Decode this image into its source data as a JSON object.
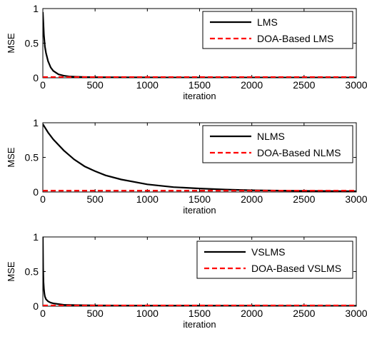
{
  "chart_data": [
    {
      "type": "line",
      "xlabel": "iteration",
      "ylabel": "MSE",
      "xlim": [
        0,
        3000
      ],
      "ylim": [
        0,
        1
      ],
      "xticks": [
        "0",
        "500",
        "1000",
        "1500",
        "2000",
        "2500",
        "3000"
      ],
      "yticks": [
        "0",
        "0.5",
        "1"
      ],
      "legend_position": "top-right",
      "series": [
        {
          "name": "LMS",
          "color": "#000000",
          "style": "solid",
          "x": [
            0,
            5,
            10,
            20,
            30,
            50,
            75,
            100,
            150,
            200,
            250,
            300,
            400,
            500,
            750,
            1000,
            1500,
            2000,
            2500,
            3000
          ],
          "y": [
            0.95,
            0.8,
            0.62,
            0.45,
            0.36,
            0.24,
            0.15,
            0.1,
            0.05,
            0.03,
            0.02,
            0.015,
            0.01,
            0.008,
            0.006,
            0.005,
            0.004,
            0.004,
            0.004,
            0.004
          ]
        },
        {
          "name": "DOA-Based LMS",
          "color": "#ff0000",
          "style": "dashed",
          "x": [
            0,
            3000
          ],
          "y": [
            0.01,
            0.01
          ]
        }
      ]
    },
    {
      "type": "line",
      "xlabel": "iteration",
      "ylabel": "MSE",
      "xlim": [
        0,
        3000
      ],
      "ylim": [
        0,
        1
      ],
      "xticks": [
        "0",
        "500",
        "1000",
        "1500",
        "2000",
        "2500",
        "3000"
      ],
      "yticks": [
        "0",
        "0.5",
        "1"
      ],
      "legend_position": "top-right",
      "series": [
        {
          "name": "NLMS",
          "color": "#000000",
          "style": "solid",
          "x": [
            0,
            50,
            100,
            200,
            300,
            400,
            500,
            600,
            750,
            1000,
            1250,
            1500,
            1750,
            2000,
            2500,
            3000
          ],
          "y": [
            0.98,
            0.86,
            0.76,
            0.6,
            0.47,
            0.37,
            0.3,
            0.24,
            0.18,
            0.11,
            0.07,
            0.05,
            0.035,
            0.025,
            0.015,
            0.01
          ]
        },
        {
          "name": "DOA-Based NLMS",
          "color": "#ff0000",
          "style": "dashed",
          "x": [
            0,
            3000
          ],
          "y": [
            0.02,
            0.02
          ]
        }
      ]
    },
    {
      "type": "line",
      "xlabel": "iteration",
      "ylabel": "MSE",
      "xlim": [
        0,
        3000
      ],
      "ylim": [
        0,
        1
      ],
      "xticks": [
        "0",
        "500",
        "1000",
        "1500",
        "2000",
        "2500",
        "3000"
      ],
      "yticks": [
        "0",
        "0.5",
        "1"
      ],
      "legend_position": "top-right",
      "series": [
        {
          "name": "VSLMS",
          "color": "#000000",
          "style": "solid",
          "x": [
            0,
            3,
            6,
            10,
            15,
            20,
            30,
            50,
            75,
            100,
            150,
            200,
            300,
            500,
            1000,
            2000,
            3000
          ],
          "y": [
            1.0,
            0.55,
            0.35,
            0.25,
            0.18,
            0.14,
            0.1,
            0.07,
            0.05,
            0.04,
            0.03,
            0.02,
            0.015,
            0.01,
            0.008,
            0.006,
            0.005
          ]
        },
        {
          "name": "DOA-Based VSLMS",
          "color": "#ff0000",
          "style": "dashed",
          "x": [
            0,
            3000
          ],
          "y": [
            0.01,
            0.01
          ]
        }
      ]
    }
  ]
}
